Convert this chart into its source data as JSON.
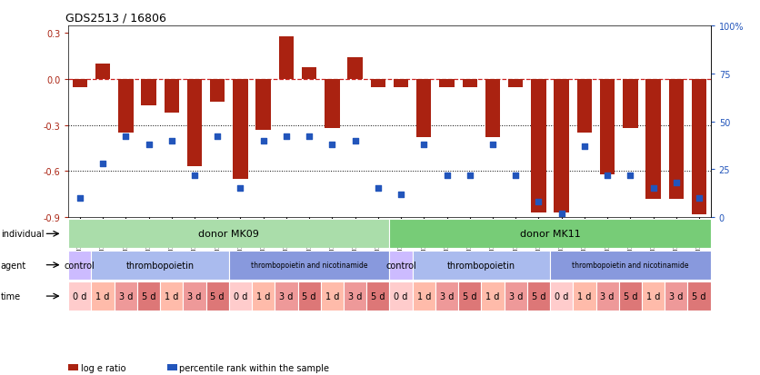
{
  "title": "GDS2513 / 16806",
  "samples": [
    "GSM112271",
    "GSM112272",
    "GSM112273",
    "GSM112274",
    "GSM112275",
    "GSM112276",
    "GSM112277",
    "GSM112278",
    "GSM112279",
    "GSM112280",
    "GSM112281",
    "GSM112282",
    "GSM112283",
    "GSM112284",
    "GSM112285",
    "GSM112286",
    "GSM112287",
    "GSM112288",
    "GSM112289",
    "GSM112290",
    "GSM112291",
    "GSM112292",
    "GSM112293",
    "GSM112294",
    "GSM112295",
    "GSM112296",
    "GSM112297",
    "GSM112298"
  ],
  "log_e_ratio": [
    -0.05,
    0.1,
    -0.35,
    -0.17,
    -0.22,
    -0.57,
    -0.15,
    -0.65,
    -0.33,
    0.28,
    0.08,
    -0.32,
    0.14,
    -0.05,
    -0.05,
    -0.38,
    -0.05,
    -0.05,
    -0.38,
    -0.05,
    -0.87,
    -0.87,
    -0.35,
    -0.62,
    -0.32,
    -0.78,
    -0.78,
    -0.88
  ],
  "percentile": [
    10,
    28,
    42,
    38,
    40,
    22,
    42,
    15,
    40,
    42,
    42,
    38,
    40,
    15,
    12,
    38,
    22,
    22,
    38,
    22,
    8,
    2,
    37,
    22,
    22,
    15,
    18,
    10
  ],
  "bar_color": "#aa2211",
  "dot_color": "#2255bb",
  "ylim_left": [
    -0.9,
    0.35
  ],
  "ylim_right": [
    0,
    100
  ],
  "yticks_left": [
    -0.9,
    -0.6,
    -0.3,
    0.0,
    0.3
  ],
  "yticks_right": [
    0,
    25,
    50,
    75,
    100
  ],
  "individual_row": [
    {
      "label": "donor MK09",
      "start": 0,
      "end": 14,
      "color": "#aaddaa"
    },
    {
      "label": "donor MK11",
      "start": 14,
      "end": 28,
      "color": "#77cc77"
    }
  ],
  "agent_row": [
    {
      "label": "control",
      "start": 0,
      "end": 1,
      "color": "#ccbbff"
    },
    {
      "label": "thrombopoietin",
      "start": 1,
      "end": 7,
      "color": "#aabbee"
    },
    {
      "label": "thrombopoietin and nicotinamide",
      "start": 7,
      "end": 14,
      "color": "#8899dd"
    },
    {
      "label": "control",
      "start": 14,
      "end": 15,
      "color": "#ccbbff"
    },
    {
      "label": "thrombopoietin",
      "start": 15,
      "end": 21,
      "color": "#aabbee"
    },
    {
      "label": "thrombopoietin and nicotinamide",
      "start": 21,
      "end": 28,
      "color": "#8899dd"
    }
  ],
  "time_row": [
    {
      "label": "0 d",
      "start": 0,
      "end": 1,
      "color": "#ffcccc"
    },
    {
      "label": "1 d",
      "start": 1,
      "end": 2,
      "color": "#ffbbaa"
    },
    {
      "label": "3 d",
      "start": 2,
      "end": 3,
      "color": "#ee9999"
    },
    {
      "label": "5 d",
      "start": 3,
      "end": 4,
      "color": "#dd7777"
    },
    {
      "label": "1 d",
      "start": 4,
      "end": 5,
      "color": "#ffbbaa"
    },
    {
      "label": "3 d",
      "start": 5,
      "end": 6,
      "color": "#ee9999"
    },
    {
      "label": "5 d",
      "start": 6,
      "end": 7,
      "color": "#dd7777"
    },
    {
      "label": "0 d",
      "start": 7,
      "end": 8,
      "color": "#ffcccc"
    },
    {
      "label": "1 d",
      "start": 8,
      "end": 9,
      "color": "#ffbbaa"
    },
    {
      "label": "3 d",
      "start": 9,
      "end": 10,
      "color": "#ee9999"
    },
    {
      "label": "5 d",
      "start": 10,
      "end": 11,
      "color": "#dd7777"
    },
    {
      "label": "1 d",
      "start": 11,
      "end": 12,
      "color": "#ffbbaa"
    },
    {
      "label": "3 d",
      "start": 12,
      "end": 13,
      "color": "#ee9999"
    },
    {
      "label": "5 d",
      "start": 13,
      "end": 14,
      "color": "#dd7777"
    },
    {
      "label": "0 d",
      "start": 14,
      "end": 15,
      "color": "#ffcccc"
    },
    {
      "label": "1 d",
      "start": 15,
      "end": 16,
      "color": "#ffbbaa"
    },
    {
      "label": "3 d",
      "start": 16,
      "end": 17,
      "color": "#ee9999"
    },
    {
      "label": "5 d",
      "start": 17,
      "end": 18,
      "color": "#dd7777"
    },
    {
      "label": "1 d",
      "start": 18,
      "end": 19,
      "color": "#ffbbaa"
    },
    {
      "label": "3 d",
      "start": 19,
      "end": 20,
      "color": "#ee9999"
    },
    {
      "label": "5 d",
      "start": 20,
      "end": 21,
      "color": "#dd7777"
    },
    {
      "label": "0 d",
      "start": 21,
      "end": 22,
      "color": "#ffcccc"
    },
    {
      "label": "1 d",
      "start": 22,
      "end": 23,
      "color": "#ffbbaa"
    },
    {
      "label": "3 d",
      "start": 23,
      "end": 24,
      "color": "#ee9999"
    },
    {
      "label": "5 d",
      "start": 24,
      "end": 25,
      "color": "#dd7777"
    },
    {
      "label": "1 d",
      "start": 25,
      "end": 26,
      "color": "#ffbbaa"
    },
    {
      "label": "3 d",
      "start": 26,
      "end": 27,
      "color": "#ee9999"
    },
    {
      "label": "5 d",
      "start": 27,
      "end": 28,
      "color": "#dd7777"
    }
  ],
  "legend_bar_label": "log e ratio",
  "legend_dot_label": "percentile rank within the sample",
  "row_label_individual": "individual",
  "row_label_agent": "agent",
  "row_label_time": "time"
}
